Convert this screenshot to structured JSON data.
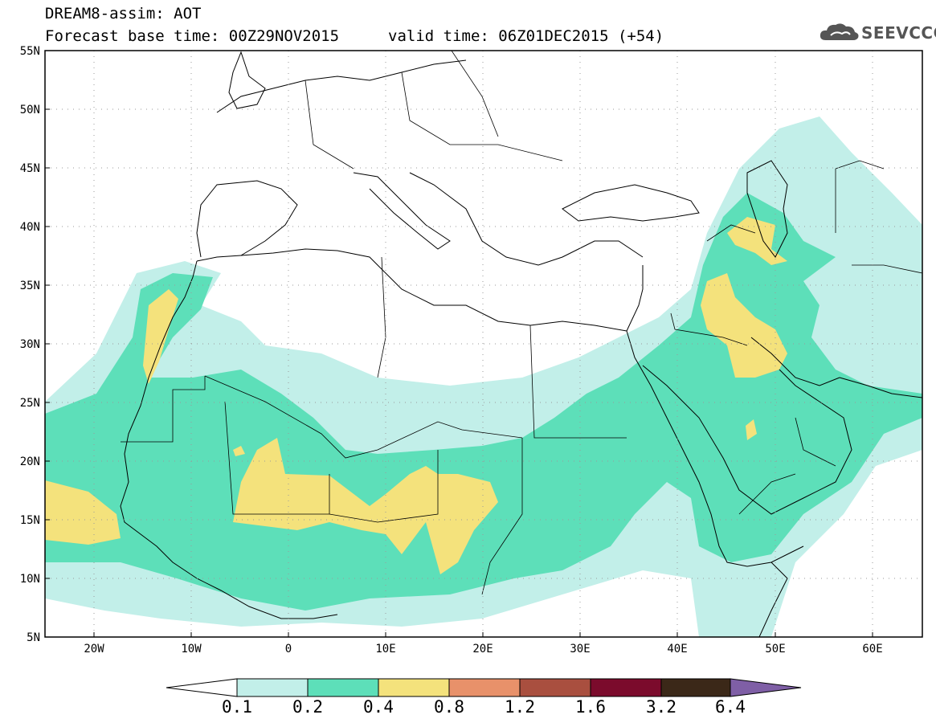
{
  "header": {
    "title_line1": "DREAM8-assim: AOT",
    "title_line2": "Forecast base time: 00Z29NOV2015",
    "valid_time": "valid time: 06Z01DEC2015 (+54)"
  },
  "logo": {
    "text": "SEEVCCC",
    "icon": "cloud-icon"
  },
  "map": {
    "lat_ticks": [
      "55N",
      "50N",
      "45N",
      "40N",
      "35N",
      "30N",
      "25N",
      "20N",
      "15N",
      "10N",
      "5N"
    ],
    "lon_ticks": [
      "20W",
      "10W",
      "0",
      "10E",
      "20E",
      "30E",
      "40E",
      "50E",
      "60E"
    ],
    "lon_range": [
      -25,
      65
    ],
    "lat_range": [
      5,
      55
    ],
    "grid": "dotted"
  },
  "colorbar": {
    "labels": [
      "0.1",
      "0.2",
      "0.4",
      "0.8",
      "1.2",
      "1.6",
      "3.2",
      "6.4"
    ],
    "colors": [
      "#ffffff",
      "#c2efe9",
      "#5ddfb9",
      "#f4e27c",
      "#e8916a",
      "#a94f3f",
      "#7b0b2c",
      "#3b2818",
      "#7f5fa6"
    ]
  }
}
